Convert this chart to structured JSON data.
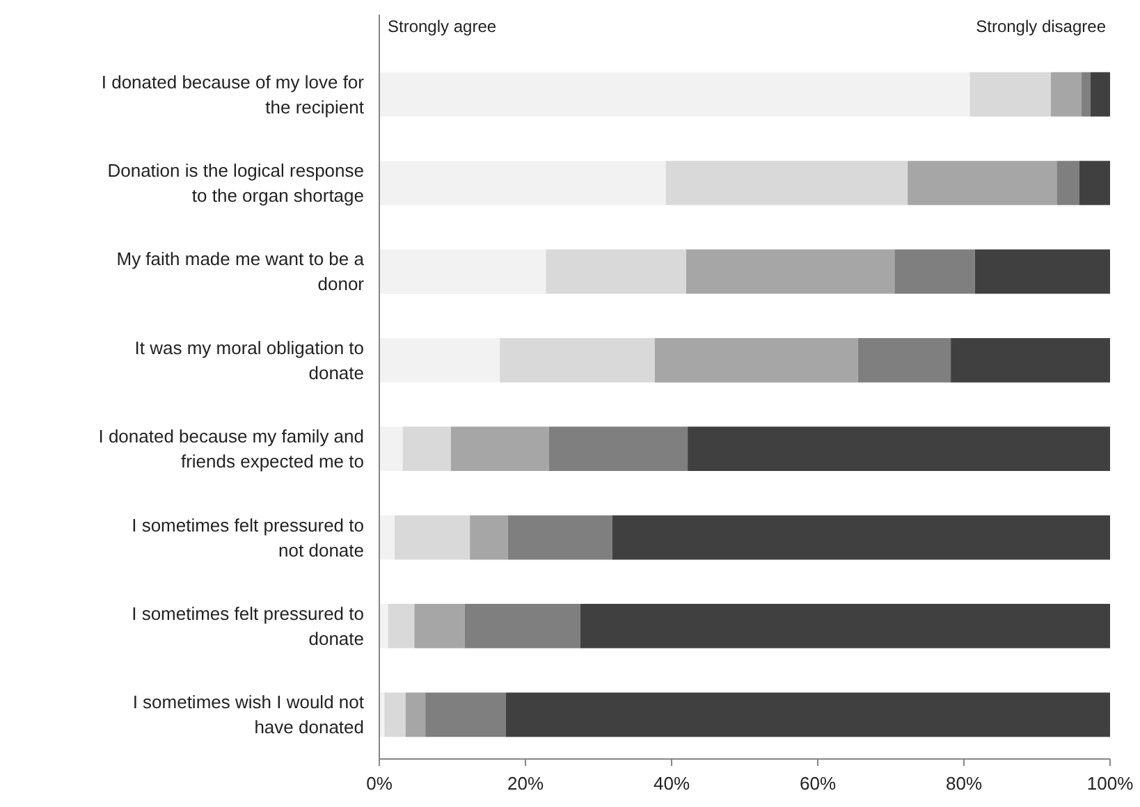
{
  "chart_data": {
    "type": "bar",
    "orientation": "horizontal",
    "stacked": true,
    "categories": [
      "I donated because of my love for the recipient",
      "Donation is the logical response to the organ shortage",
      "My faith made me want to be a donor",
      "It was my moral obligation to donate",
      "I donated because my family and friends expected me to",
      "I sometimes felt pressured to not donate",
      "I sometimes felt pressured to donate",
      "I sometimes wish I would not have donated"
    ],
    "series": [
      {
        "color": "#f2f2f2",
        "values": [
          80.8,
          39.2,
          22.8,
          16.5,
          3.2,
          2.1,
          1.2,
          0.7
        ]
      },
      {
        "color": "#d9d9d9",
        "values": [
          11.1,
          33.1,
          19.2,
          21.2,
          6.6,
          10.3,
          3.6,
          2.9
        ]
      },
      {
        "color": "#a6a6a6",
        "values": [
          4.2,
          20.4,
          28.5,
          27.8,
          13.4,
          5.2,
          6.9,
          2.7
        ]
      },
      {
        "color": "#7f7f7f",
        "values": [
          1.2,
          3.1,
          11.0,
          12.7,
          19.0,
          14.3,
          15.8,
          11.0
        ]
      },
      {
        "color": "#404040",
        "values": [
          2.7,
          4.2,
          18.5,
          21.8,
          57.8,
          68.1,
          72.5,
          82.7
        ]
      }
    ],
    "xlim": [
      0,
      100
    ],
    "xticks": [
      {
        "value": 0,
        "label": "0%"
      },
      {
        "value": 20,
        "label": "20%"
      },
      {
        "value": 40,
        "label": "40%"
      },
      {
        "value": 60,
        "label": "60%"
      },
      {
        "value": 80,
        "label": "80%"
      },
      {
        "value": 100,
        "label": "100%"
      }
    ],
    "annotations": [
      "Strongly agree",
      "Strongly disagree"
    ],
    "grid": false
  }
}
